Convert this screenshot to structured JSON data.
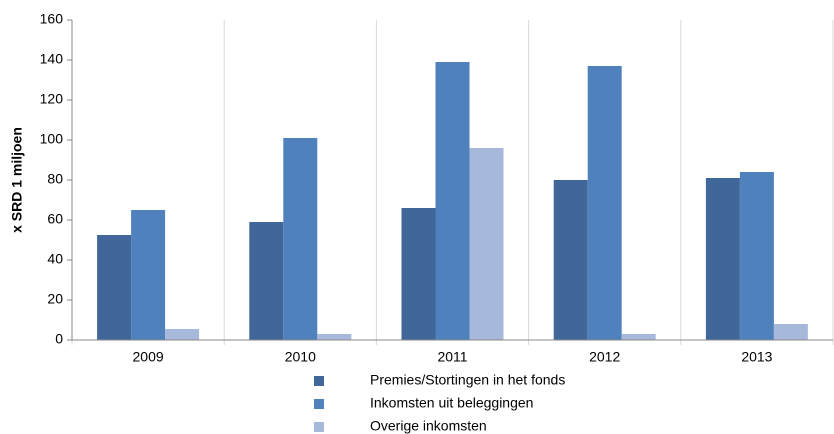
{
  "chart_data": {
    "type": "bar",
    "y_label": "x SRD 1 miljoen",
    "categories": [
      "2009",
      "2010",
      "2011",
      "2012",
      "2013"
    ],
    "series": [
      {
        "name": "Premies/Stortingen in het fonds",
        "color": "#41679a",
        "values": [
          52.5,
          59,
          66,
          80,
          81
        ]
      },
      {
        "name": "Inkomsten uit beleggingen",
        "color": "#4f81bd",
        "values": [
          65,
          101,
          139,
          137,
          84
        ]
      },
      {
        "name": "Overige inkomsten",
        "color": "#a7b9db",
        "values": [
          5.5,
          3,
          96,
          3,
          8
        ]
      }
    ],
    "ylim": [
      0,
      160
    ],
    "yticks": [
      0,
      20,
      40,
      60,
      80,
      100,
      120,
      140,
      160
    ],
    "legend": "bottom"
  }
}
